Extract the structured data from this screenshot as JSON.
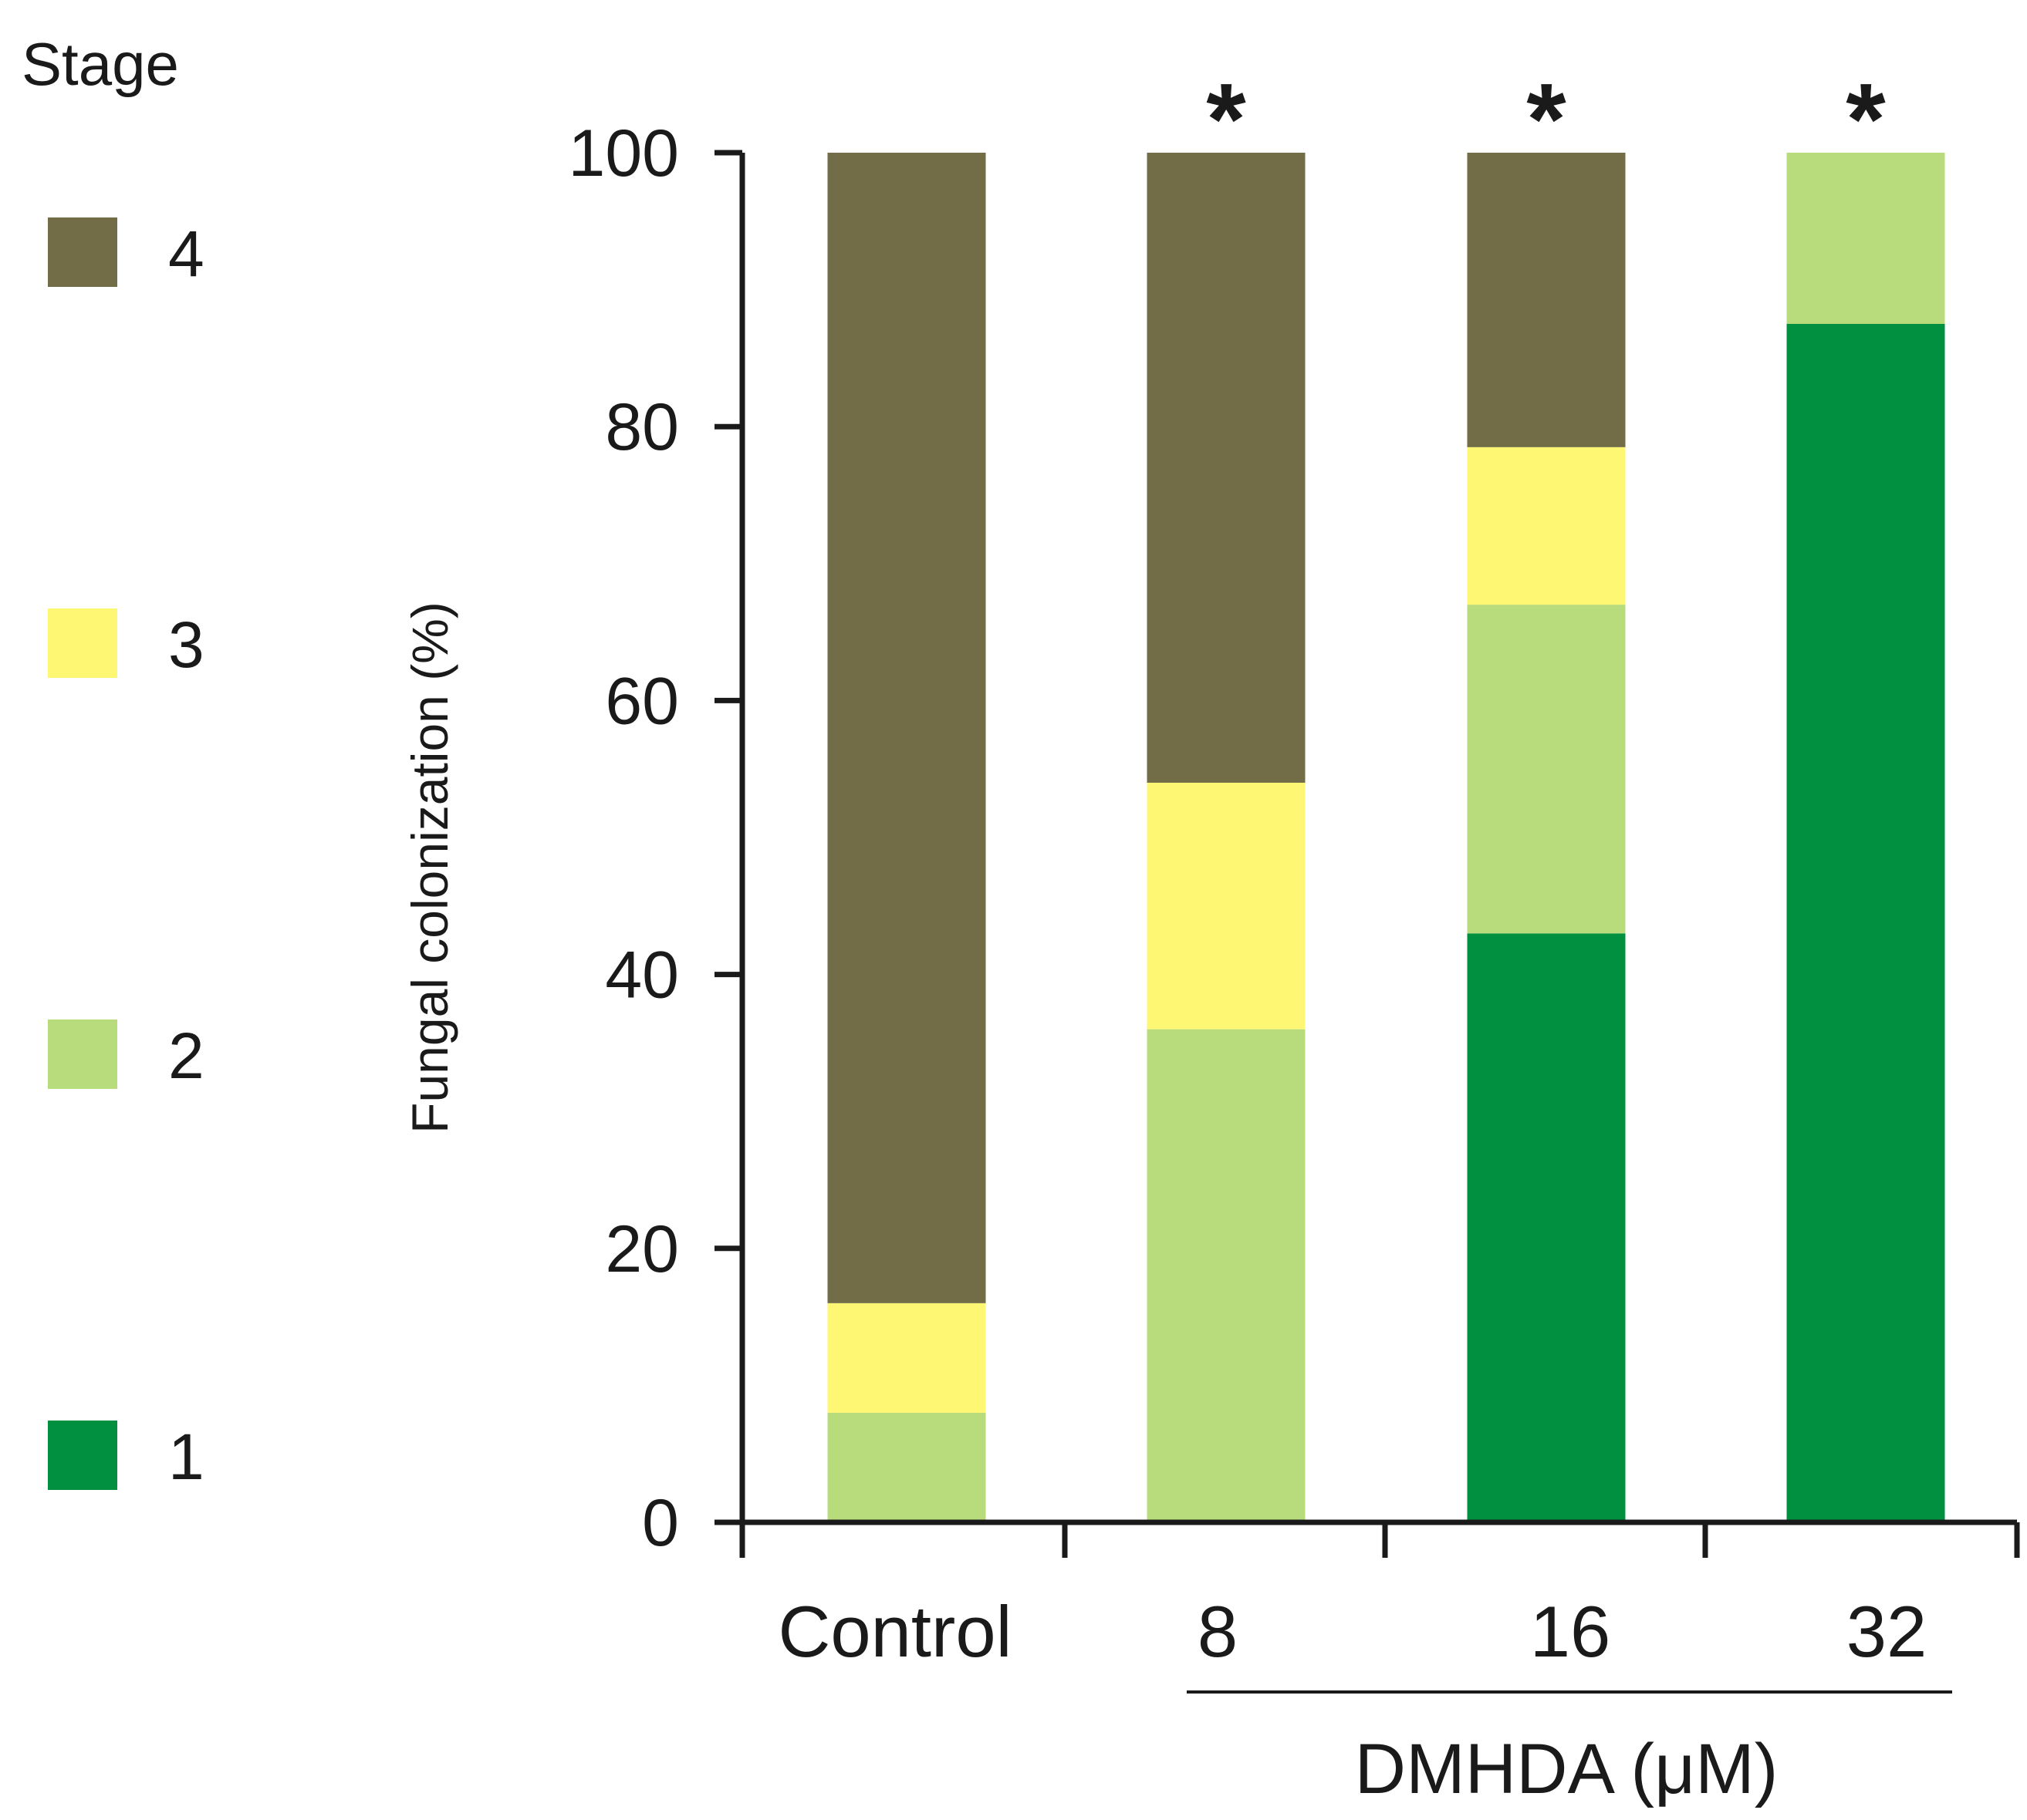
{
  "chart_data": {
    "type": "bar",
    "stacked": true,
    "categories": [
      "Control",
      "8",
      "16",
      "32"
    ],
    "ylabel": "Fungal colonization  (%)",
    "ylim": [
      0,
      100
    ],
    "yticks": [
      0,
      20,
      40,
      60,
      80,
      100
    ],
    "xgroup_label": "DMHDA (μM)",
    "xgroup_categories": [
      "8",
      "16",
      "32"
    ],
    "significance": [
      "",
      "*",
      "*",
      "*"
    ],
    "legend": {
      "title": "Stage",
      "position": "left"
    },
    "series": [
      {
        "name": "1",
        "color": "#009040",
        "values": [
          0,
          0,
          43,
          87.5
        ]
      },
      {
        "name": "2",
        "color": "#b8dc7c",
        "values": [
          8,
          36,
          24,
          12.5
        ]
      },
      {
        "name": "3",
        "color": "#fdf773",
        "values": [
          8,
          18,
          11.5,
          0
        ]
      },
      {
        "name": "4",
        "color": "#726d46",
        "values": [
          84,
          46,
          21.5,
          0
        ]
      }
    ]
  }
}
